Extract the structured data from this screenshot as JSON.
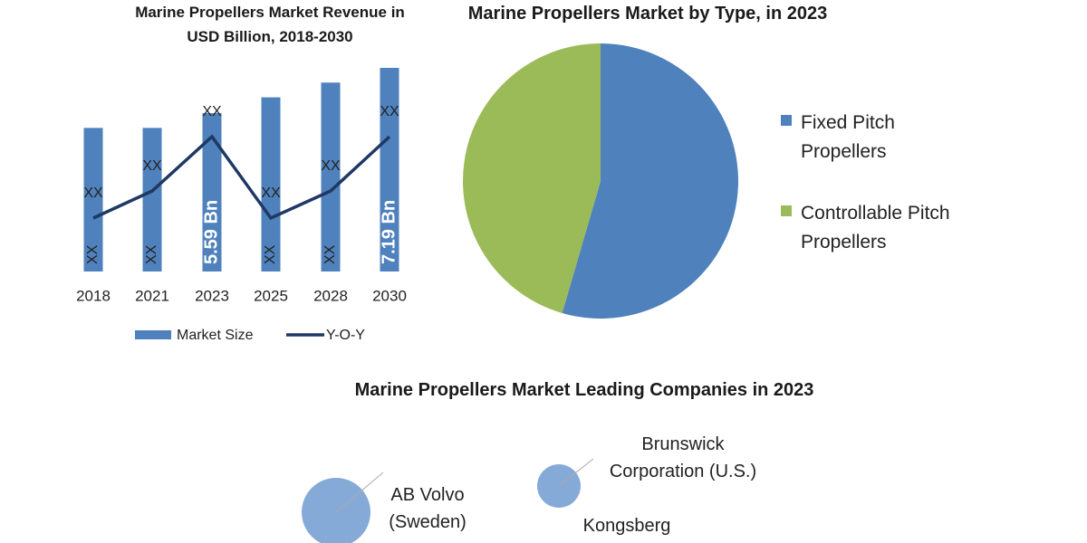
{
  "chart_data": [
    {
      "type": "bar_line",
      "title": "Marine Propellers Market Revenue in USD Billion, 2018-2030",
      "categories": [
        "2018",
        "2021",
        "2023",
        "2025",
        "2028",
        "2030"
      ],
      "series": [
        {
          "name": "Market Size",
          "color": "#4f81bd",
          "type": "bar",
          "values": [
            5.07,
            5.07,
            5.59,
            6.15,
            6.67,
            7.19
          ],
          "value_labels": [
            "XX",
            "XX",
            "5.59 Bn",
            "XX",
            "XX",
            "7.19 Bn"
          ]
        },
        {
          "name": "Y-O-Y",
          "color": "#1f3864",
          "type": "line",
          "values": [
            2,
            3,
            5,
            2,
            3,
            5
          ],
          "value_labels": [
            "XX",
            "XX",
            "XX",
            "XX",
            "XX",
            "XX"
          ]
        }
      ]
    },
    {
      "type": "pie",
      "title": "Marine Propellers Market by Type, in 2023",
      "categories": [
        "Fixed Pitch Propellers",
        "Controllable Pitch Propellers"
      ],
      "values": [
        54.5,
        45.5
      ],
      "colors": [
        "#4f81bd",
        "#9bbb59"
      ]
    },
    {
      "type": "bubble",
      "title": "Marine Propellers Market Leading Companies in 2023",
      "categories": [
        "AB Volvo (Sweden)",
        "Brunswick Corporation (U.S.)",
        "Kongsberg"
      ],
      "sizes": [
        38,
        24,
        null
      ],
      "color": "#86aad8"
    }
  ]
}
